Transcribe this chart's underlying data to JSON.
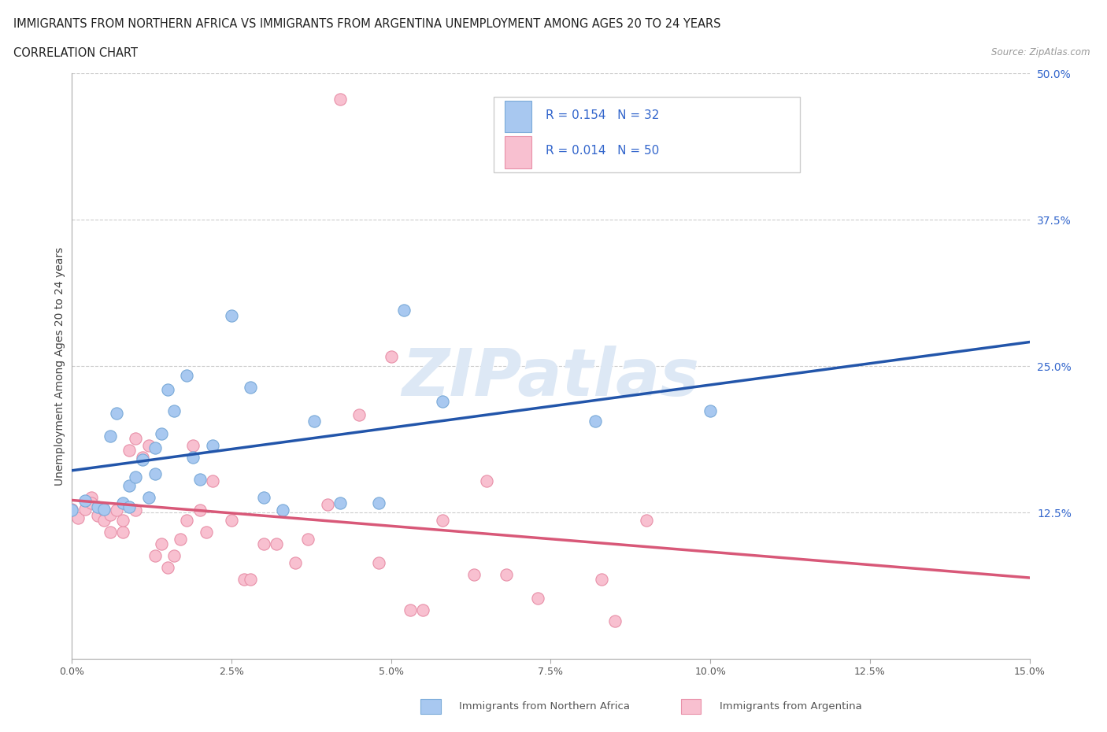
{
  "title_line1": "IMMIGRANTS FROM NORTHERN AFRICA VS IMMIGRANTS FROM ARGENTINA UNEMPLOYMENT AMONG AGES 20 TO 24 YEARS",
  "title_line2": "CORRELATION CHART",
  "source": "Source: ZipAtlas.com",
  "ylabel": "Unemployment Among Ages 20 to 24 years",
  "xlim": [
    0.0,
    0.15
  ],
  "ylim": [
    0.0,
    0.5
  ],
  "xtick_positions": [
    0.0,
    0.025,
    0.05,
    0.075,
    0.1,
    0.125,
    0.15
  ],
  "xtick_labels": [
    "0.0%",
    "2.5%",
    "5.0%",
    "7.5%",
    "10.0%",
    "12.5%",
    "15.0%"
  ],
  "yticks_right": [
    0.125,
    0.25,
    0.375,
    0.5
  ],
  "ytick_labels_right": [
    "12.5%",
    "25.0%",
    "37.5%",
    "50.0%"
  ],
  "series1_label": "Immigrants from Northern Africa",
  "series1_color": "#a8c8f0",
  "series1_edge_color": "#7aaad8",
  "series1_R": "0.154",
  "series1_N": "32",
  "series1_line_color": "#2255aa",
  "series2_label": "Immigrants from Argentina",
  "series2_color": "#f8c0d0",
  "series2_edge_color": "#e890a8",
  "series2_R": "0.014",
  "series2_N": "50",
  "series2_line_color": "#d85878",
  "legend_text_color": "#3366cc",
  "watermark": "ZIPatlas",
  "watermark_color": "#dde8f5",
  "background_color": "#ffffff",
  "grid_color": "#cccccc",
  "series1_x": [
    0.0,
    0.002,
    0.004,
    0.005,
    0.006,
    0.007,
    0.008,
    0.009,
    0.009,
    0.01,
    0.011,
    0.012,
    0.013,
    0.013,
    0.014,
    0.015,
    0.016,
    0.018,
    0.019,
    0.02,
    0.022,
    0.025,
    0.028,
    0.03,
    0.033,
    0.038,
    0.042,
    0.048,
    0.052,
    0.058,
    0.082,
    0.1
  ],
  "series1_y": [
    0.127,
    0.135,
    0.13,
    0.128,
    0.19,
    0.21,
    0.133,
    0.148,
    0.13,
    0.155,
    0.17,
    0.138,
    0.18,
    0.158,
    0.192,
    0.23,
    0.212,
    0.242,
    0.172,
    0.153,
    0.182,
    0.293,
    0.232,
    0.138,
    0.127,
    0.203,
    0.133,
    0.133,
    0.298,
    0.22,
    0.203,
    0.212
  ],
  "series2_x": [
    0.0,
    0.001,
    0.002,
    0.003,
    0.003,
    0.004,
    0.005,
    0.005,
    0.006,
    0.006,
    0.007,
    0.008,
    0.008,
    0.009,
    0.01,
    0.01,
    0.011,
    0.012,
    0.013,
    0.014,
    0.015,
    0.016,
    0.017,
    0.018,
    0.019,
    0.02,
    0.021,
    0.022,
    0.025,
    0.027,
    0.028,
    0.03,
    0.032,
    0.035,
    0.037,
    0.04,
    0.042,
    0.045,
    0.048,
    0.05,
    0.053,
    0.055,
    0.058,
    0.063,
    0.065,
    0.068,
    0.073,
    0.083,
    0.085,
    0.09
  ],
  "series2_y": [
    0.128,
    0.12,
    0.128,
    0.138,
    0.133,
    0.122,
    0.127,
    0.118,
    0.108,
    0.123,
    0.127,
    0.108,
    0.118,
    0.178,
    0.188,
    0.127,
    0.172,
    0.182,
    0.088,
    0.098,
    0.078,
    0.088,
    0.102,
    0.118,
    0.182,
    0.127,
    0.108,
    0.152,
    0.118,
    0.068,
    0.068,
    0.098,
    0.098,
    0.082,
    0.102,
    0.132,
    0.478,
    0.208,
    0.082,
    0.258,
    0.042,
    0.042,
    0.118,
    0.072,
    0.152,
    0.072,
    0.052,
    0.068,
    0.032,
    0.118
  ]
}
